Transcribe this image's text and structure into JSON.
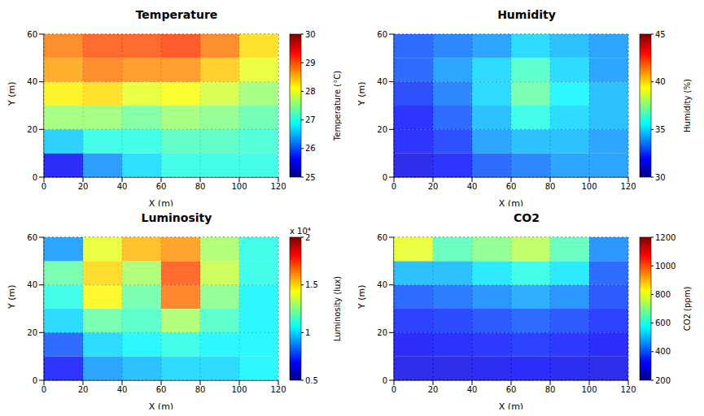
{
  "chart_data": [
    {
      "type": "heatmap",
      "title": "Temperature",
      "x_label": "X (m)",
      "y_label": "Y (m)",
      "z_label": "Temperature (°C)",
      "x": [
        0,
        20,
        40,
        60,
        80,
        100
      ],
      "y": [
        0,
        10,
        20,
        30,
        40,
        50
      ],
      "values": [
        [
          25.6,
          26.3,
          26.7,
          27.0,
          27.0,
          27.0
        ],
        [
          26.6,
          27.0,
          27.0,
          27.2,
          27.2,
          27.1
        ],
        [
          27.6,
          27.6,
          27.4,
          27.6,
          27.5,
          27.3
        ],
        [
          28.2,
          28.3,
          28.0,
          28.1,
          27.9,
          27.6
        ],
        [
          28.6,
          28.8,
          28.7,
          28.7,
          28.4,
          28.0
        ],
        [
          28.8,
          29.0,
          29.0,
          29.1,
          28.8,
          28.3
        ]
      ],
      "xlim": [
        0,
        120
      ],
      "xticks": [
        0,
        20,
        40,
        60,
        80,
        100,
        120
      ],
      "ylim": [
        0,
        60
      ],
      "yticks": [
        0,
        20,
        40,
        60
      ],
      "zlim": [
        25,
        30
      ],
      "zticks": [
        25,
        26,
        27,
        28,
        29,
        30
      ],
      "grid": true
    },
    {
      "type": "heatmap",
      "title": "Humidity",
      "x_label": "X (m)",
      "y_label": "Y (m)",
      "z_label": "Humidity (%)",
      "x": [
        0,
        20,
        40,
        60,
        80,
        100
      ],
      "y": [
        0,
        10,
        20,
        30,
        40,
        50
      ],
      "values": [
        [
          31.5,
          32,
          33,
          33.5,
          34,
          34
        ],
        [
          32,
          32.5,
          34,
          34.5,
          34.5,
          34
        ],
        [
          32,
          33,
          34.5,
          36,
          35,
          34.5
        ],
        [
          32.5,
          33.5,
          35,
          37,
          35.5,
          34.5
        ],
        [
          33,
          34,
          35,
          36.5,
          35,
          34
        ],
        [
          33,
          33.5,
          34,
          35,
          34.5,
          34
        ]
      ],
      "xlim": [
        0,
        120
      ],
      "xticks": [
        0,
        20,
        40,
        60,
        80,
        100,
        120
      ],
      "ylim": [
        0,
        60
      ],
      "yticks": [
        0,
        20,
        40,
        60
      ],
      "zlim": [
        30,
        45
      ],
      "zticks": [
        30,
        35,
        40,
        45
      ],
      "grid": true
    },
    {
      "type": "heatmap",
      "title": "Luminosity",
      "x_label": "X (m)",
      "y_label": "Y (m)",
      "z_label": "Luminosity (lux)",
      "annotation": "x 10⁴",
      "x": [
        0,
        20,
        40,
        60,
        80,
        100
      ],
      "y": [
        0,
        10,
        20,
        30,
        40,
        50
      ],
      "values": [
        [
          7000,
          9000,
          9500,
          10000,
          10000,
          10500
        ],
        [
          8000,
          10000,
          10500,
          11000,
          10500,
          10500
        ],
        [
          10000,
          12000,
          11500,
          13000,
          11500,
          10500
        ],
        [
          11000,
          14500,
          12000,
          16500,
          12500,
          10500
        ],
        [
          12000,
          15000,
          13000,
          17000,
          13500,
          11000
        ],
        [
          9000,
          14000,
          15500,
          16000,
          13000,
          11000
        ]
      ],
      "xlim": [
        0,
        120
      ],
      "xticks": [
        0,
        20,
        40,
        60,
        80,
        100,
        120
      ],
      "ylim": [
        0,
        60
      ],
      "yticks": [
        0,
        20,
        40,
        60
      ],
      "zlim": [
        5000,
        20000
      ],
      "zticks": [
        {
          "value": 5000,
          "label": "0.5"
        },
        {
          "value": 10000,
          "label": "1"
        },
        {
          "value": 15000,
          "label": "1.5"
        },
        {
          "value": 20000,
          "label": "2"
        }
      ],
      "grid": true
    },
    {
      "type": "heatmap",
      "title": "CO2",
      "x_label": "X (m)",
      "y_label": "Y (m)",
      "z_label": "CO2 (ppm)",
      "x": [
        0,
        20,
        40,
        60,
        80,
        100
      ],
      "y": [
        0,
        10,
        20,
        30,
        40,
        50
      ],
      "values": [
        [
          300,
          300,
          310,
          320,
          310,
          300
        ],
        [
          320,
          330,
          340,
          350,
          340,
          320
        ],
        [
          350,
          360,
          380,
          400,
          380,
          350
        ],
        [
          400,
          420,
          450,
          480,
          450,
          380
        ],
        [
          500,
          500,
          550,
          600,
          550,
          400
        ],
        [
          800,
          650,
          700,
          750,
          650,
          450
        ]
      ],
      "xlim": [
        0,
        120
      ],
      "xticks": [
        0,
        20,
        40,
        60,
        80,
        100,
        120
      ],
      "ylim": [
        0,
        60
      ],
      "yticks": [
        0,
        20,
        40,
        60
      ],
      "zlim": [
        200,
        1200
      ],
      "zticks": [
        200,
        400,
        600,
        800,
        1000,
        1200
      ],
      "grid": true
    }
  ]
}
